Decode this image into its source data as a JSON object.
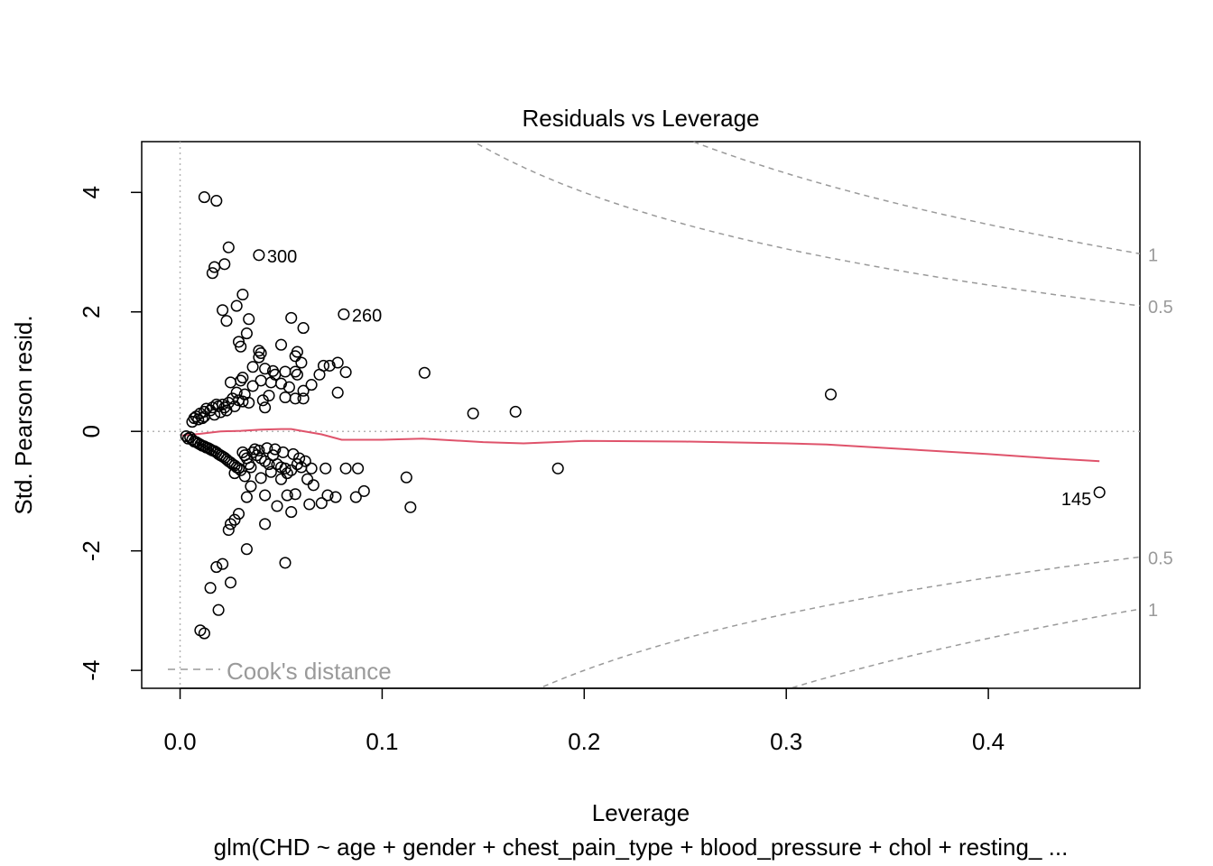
{
  "chart_data": {
    "type": "scatter",
    "title": "Residuals vs Leverage",
    "xlabel": "Leverage",
    "ylabel": "Std. Pearson resid.",
    "subtitle": "glm(CHD ~ age + gender + chest_pain_type + blood_pressure + chol + resting_ ...",
    "xlim": [
      -0.019,
      0.475
    ],
    "ylim": [
      -4.3,
      4.85
    ],
    "x_ticks": [
      0.0,
      0.1,
      0.2,
      0.3,
      0.4
    ],
    "x_tick_labels": [
      "0.0",
      "0.1",
      "0.2",
      "0.3",
      "0.4"
    ],
    "y_ticks": [
      -4,
      -2,
      0,
      2,
      4
    ],
    "y_tick_labels": [
      "-4",
      "-2",
      "0",
      "2",
      "4"
    ],
    "grid": false,
    "legend": {
      "label": "Cook's distance",
      "position": "bottom-left"
    },
    "reference_lines": {
      "x": 0,
      "y": 0
    },
    "cooks_contours": [
      {
        "level": 0.5,
        "label": "0.5"
      },
      {
        "level": 1,
        "label": "1"
      }
    ],
    "num_coefficients": 8,
    "point_labels": [
      {
        "label": "300",
        "x": 0.039,
        "y": 2.95,
        "side": "right"
      },
      {
        "label": "260",
        "x": 0.081,
        "y": 1.96,
        "side": "right"
      },
      {
        "label": "145",
        "x": 0.455,
        "y": -1.02,
        "side": "left"
      }
    ],
    "smoother": {
      "x": [
        0.001,
        0.01,
        0.02,
        0.03,
        0.04,
        0.05,
        0.055,
        0.06,
        0.07,
        0.08,
        0.1,
        0.12,
        0.15,
        0.17,
        0.2,
        0.25,
        0.3,
        0.32,
        0.35,
        0.4,
        0.43,
        0.455
      ],
      "y": [
        -0.07,
        -0.04,
        0.0,
        0.01,
        0.03,
        0.04,
        0.04,
        0.01,
        -0.05,
        -0.14,
        -0.14,
        -0.12,
        -0.18,
        -0.2,
        -0.16,
        -0.17,
        -0.2,
        -0.22,
        -0.28,
        -0.38,
        -0.45,
        -0.5
      ]
    },
    "points": [
      [
        0.012,
        3.92
      ],
      [
        0.018,
        3.86
      ],
      [
        0.024,
        3.08
      ],
      [
        0.039,
        2.95
      ],
      [
        0.022,
        2.8
      ],
      [
        0.017,
        2.75
      ],
      [
        0.016,
        2.65
      ],
      [
        0.031,
        2.29
      ],
      [
        0.028,
        2.1
      ],
      [
        0.021,
        2.03
      ],
      [
        0.081,
        1.96
      ],
      [
        0.055,
        1.9
      ],
      [
        0.034,
        1.88
      ],
      [
        0.023,
        1.85
      ],
      [
        0.061,
        1.73
      ],
      [
        0.033,
        1.64
      ],
      [
        0.029,
        1.5
      ],
      [
        0.03,
        1.42
      ],
      [
        0.05,
        1.45
      ],
      [
        0.039,
        1.35
      ],
      [
        0.04,
        1.31
      ],
      [
        0.058,
        1.33
      ],
      [
        0.057,
        1.26
      ],
      [
        0.039,
        1.24
      ],
      [
        0.06,
        1.15
      ],
      [
        0.078,
        1.15
      ],
      [
        0.071,
        1.1
      ],
      [
        0.074,
        1.1
      ],
      [
        0.036,
        1.08
      ],
      [
        0.042,
        1.05
      ],
      [
        0.046,
        1.01
      ],
      [
        0.052,
        1.0
      ],
      [
        0.057,
        1.0
      ],
      [
        0.082,
        0.99
      ],
      [
        0.121,
        0.98
      ],
      [
        0.047,
        0.95
      ],
      [
        0.069,
        0.95
      ],
      [
        0.058,
        0.95
      ],
      [
        0.031,
        0.9
      ],
      [
        0.03,
        0.85
      ],
      [
        0.04,
        0.85
      ],
      [
        0.025,
        0.82
      ],
      [
        0.045,
        0.82
      ],
      [
        0.05,
        0.8
      ],
      [
        0.065,
        0.78
      ],
      [
        0.036,
        0.76
      ],
      [
        0.054,
        0.74
      ],
      [
        0.061,
        0.68
      ],
      [
        0.078,
        0.65
      ],
      [
        0.028,
        0.65
      ],
      [
        0.032,
        0.62
      ],
      [
        0.322,
        0.62
      ],
      [
        0.044,
        0.6
      ],
      [
        0.052,
        0.57
      ],
      [
        0.057,
        0.55
      ],
      [
        0.061,
        0.55
      ],
      [
        0.041,
        0.52
      ],
      [
        0.026,
        0.55
      ],
      [
        0.029,
        0.52
      ],
      [
        0.031,
        0.5
      ],
      [
        0.034,
        0.48
      ],
      [
        0.024,
        0.48
      ],
      [
        0.021,
        0.45
      ],
      [
        0.018,
        0.45
      ],
      [
        0.019,
        0.42
      ],
      [
        0.022,
        0.4
      ],
      [
        0.016,
        0.4
      ],
      [
        0.013,
        0.38
      ],
      [
        0.027,
        0.42
      ],
      [
        0.042,
        0.4
      ],
      [
        0.015,
        0.35
      ],
      [
        0.012,
        0.33
      ],
      [
        0.02,
        0.32
      ],
      [
        0.01,
        0.3
      ],
      [
        0.017,
        0.28
      ],
      [
        0.008,
        0.25
      ],
      [
        0.012,
        0.25
      ],
      [
        0.145,
        0.3
      ],
      [
        0.166,
        0.33
      ],
      [
        0.007,
        0.22
      ],
      [
        0.009,
        0.2
      ],
      [
        0.006,
        0.16
      ],
      [
        0.011,
        0.22
      ],
      [
        0.023,
        0.35
      ],
      [
        0.003,
        -0.08
      ],
      [
        0.004,
        -0.12
      ],
      [
        0.005,
        -0.1
      ],
      [
        0.006,
        -0.14
      ],
      [
        0.007,
        -0.17
      ],
      [
        0.008,
        -0.18
      ],
      [
        0.009,
        -0.2
      ],
      [
        0.01,
        -0.22
      ],
      [
        0.011,
        -0.24
      ],
      [
        0.012,
        -0.25
      ],
      [
        0.013,
        -0.27
      ],
      [
        0.014,
        -0.28
      ],
      [
        0.015,
        -0.3
      ],
      [
        0.016,
        -0.32
      ],
      [
        0.017,
        -0.33
      ],
      [
        0.018,
        -0.35
      ],
      [
        0.019,
        -0.38
      ],
      [
        0.02,
        -0.4
      ],
      [
        0.021,
        -0.42
      ],
      [
        0.022,
        -0.44
      ],
      [
        0.023,
        -0.47
      ],
      [
        0.024,
        -0.5
      ],
      [
        0.025,
        -0.52
      ],
      [
        0.026,
        -0.55
      ],
      [
        0.027,
        -0.57
      ],
      [
        0.028,
        -0.6
      ],
      [
        0.029,
        -0.62
      ],
      [
        0.03,
        -0.65
      ],
      [
        0.031,
        -0.35
      ],
      [
        0.032,
        -0.4
      ],
      [
        0.033,
        -0.45
      ],
      [
        0.034,
        -0.55
      ],
      [
        0.035,
        -0.6
      ],
      [
        0.036,
        -0.35
      ],
      [
        0.038,
        -0.4
      ],
      [
        0.04,
        -0.45
      ],
      [
        0.042,
        -0.5
      ],
      [
        0.044,
        -0.55
      ],
      [
        0.046,
        -0.4
      ],
      [
        0.048,
        -0.55
      ],
      [
        0.05,
        -0.6
      ],
      [
        0.052,
        -0.62
      ],
      [
        0.055,
        -0.65
      ],
      [
        0.058,
        -0.55
      ],
      [
        0.06,
        -0.6
      ],
      [
        0.065,
        -0.62
      ],
      [
        0.072,
        -0.62
      ],
      [
        0.082,
        -0.62
      ],
      [
        0.088,
        -0.62
      ],
      [
        0.187,
        -0.62
      ],
      [
        0.112,
        -0.77
      ],
      [
        0.032,
        -0.75
      ],
      [
        0.04,
        -0.78
      ],
      [
        0.05,
        -0.8
      ],
      [
        0.063,
        -0.8
      ],
      [
        0.027,
        -0.7
      ],
      [
        0.045,
        -0.68
      ],
      [
        0.053,
        -0.7
      ],
      [
        0.035,
        -0.92
      ],
      [
        0.066,
        -0.9
      ],
      [
        0.091,
        -1.0
      ],
      [
        0.042,
        -1.07
      ],
      [
        0.053,
        -1.07
      ],
      [
        0.057,
        -1.05
      ],
      [
        0.073,
        -1.07
      ],
      [
        0.077,
        -1.1
      ],
      [
        0.087,
        -1.1
      ],
      [
        0.033,
        -1.1
      ],
      [
        0.064,
        -1.22
      ],
      [
        0.07,
        -1.2
      ],
      [
        0.048,
        -1.25
      ],
      [
        0.055,
        -1.35
      ],
      [
        0.114,
        -1.27
      ],
      [
        0.029,
        -1.38
      ],
      [
        0.027,
        -1.48
      ],
      [
        0.025,
        -1.55
      ],
      [
        0.042,
        -1.55
      ],
      [
        0.024,
        -1.65
      ],
      [
        0.033,
        -1.97
      ],
      [
        0.052,
        -2.2
      ],
      [
        0.021,
        -2.22
      ],
      [
        0.018,
        -2.27
      ],
      [
        0.025,
        -2.53
      ],
      [
        0.015,
        -2.62
      ],
      [
        0.019,
        -2.99
      ],
      [
        0.01,
        -3.33
      ],
      [
        0.012,
        -3.38
      ],
      [
        0.455,
        -1.02
      ],
      [
        0.037,
        -0.3
      ],
      [
        0.039,
        -0.32
      ],
      [
        0.043,
        -0.28
      ],
      [
        0.047,
        -0.3
      ],
      [
        0.051,
        -0.35
      ],
      [
        0.056,
        -0.38
      ],
      [
        0.059,
        -0.45
      ],
      [
        0.062,
        -0.5
      ]
    ]
  }
}
